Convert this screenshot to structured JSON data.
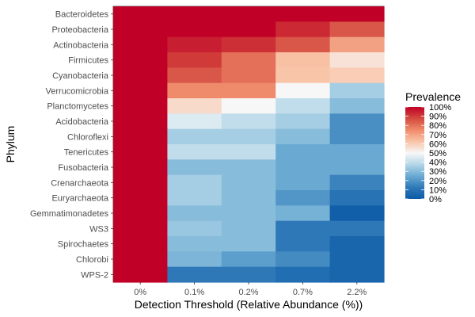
{
  "chart_data": {
    "type": "heatmap",
    "xlabel": "Detection Threshold (Relative Abundance (%))",
    "ylabel": "Phylum",
    "x_categories": [
      "0%",
      "0.1%",
      "0.2%",
      "0.7%",
      "2.2%"
    ],
    "y_categories": [
      "Bacteroidetes",
      "Proteobacteria",
      "Actinobacteria",
      "Firmicutes",
      "Cyanobacteria",
      "Verrucomicrobia",
      "Planctomycetes",
      "Acidobacteria",
      "Chloroflexi",
      "Tenericutes",
      "Fusobacteria",
      "Crenarchaeota",
      "Euryarchaeota",
      "Gemmatimonadetes",
      "WS3",
      "Spirochaetes",
      "Chlorobi",
      "WPS-2"
    ],
    "values": [
      [
        1.0,
        1.0,
        1.0,
        1.0,
        1.0
      ],
      [
        1.0,
        1.0,
        1.0,
        0.93,
        0.85
      ],
      [
        1.0,
        0.95,
        0.92,
        0.85,
        0.7
      ],
      [
        1.0,
        0.9,
        0.8,
        0.63,
        0.55
      ],
      [
        1.0,
        0.85,
        0.8,
        0.62,
        0.6
      ],
      [
        1.0,
        0.75,
        0.75,
        0.5,
        0.35
      ],
      [
        1.0,
        0.57,
        0.5,
        0.4,
        0.3
      ],
      [
        1.0,
        0.45,
        0.4,
        0.35,
        0.18
      ],
      [
        1.0,
        0.35,
        0.35,
        0.3,
        0.18
      ],
      [
        1.0,
        0.4,
        0.4,
        0.25,
        0.25
      ],
      [
        1.0,
        0.3,
        0.3,
        0.25,
        0.25
      ],
      [
        1.0,
        0.35,
        0.3,
        0.25,
        0.15
      ],
      [
        1.0,
        0.35,
        0.3,
        0.2,
        0.1
      ],
      [
        1.0,
        0.3,
        0.3,
        0.27,
        0.02
      ],
      [
        1.0,
        0.33,
        0.3,
        0.12,
        0.12
      ],
      [
        1.0,
        0.3,
        0.3,
        0.12,
        0.05
      ],
      [
        1.0,
        0.28,
        0.22,
        0.17,
        0.05
      ],
      [
        1.0,
        0.12,
        0.12,
        0.08,
        0.05
      ]
    ],
    "legend": {
      "title": "Prevalence",
      "labels": [
        "100%",
        "90%",
        "80%",
        "70%",
        "60%",
        "50%",
        "40%",
        "30%",
        "20%",
        "10%",
        "0%"
      ]
    },
    "colors": {
      "scale": [
        "#2166ac",
        "#4393c3",
        "#92c5de",
        "#d1e5f0",
        "#f7f7f7",
        "#fddbc7",
        "#f4a582",
        "#d6604d",
        "#b2182b"
      ],
      "low": "#0b5aa6",
      "high": "#c00027"
    },
    "grid": false
  }
}
